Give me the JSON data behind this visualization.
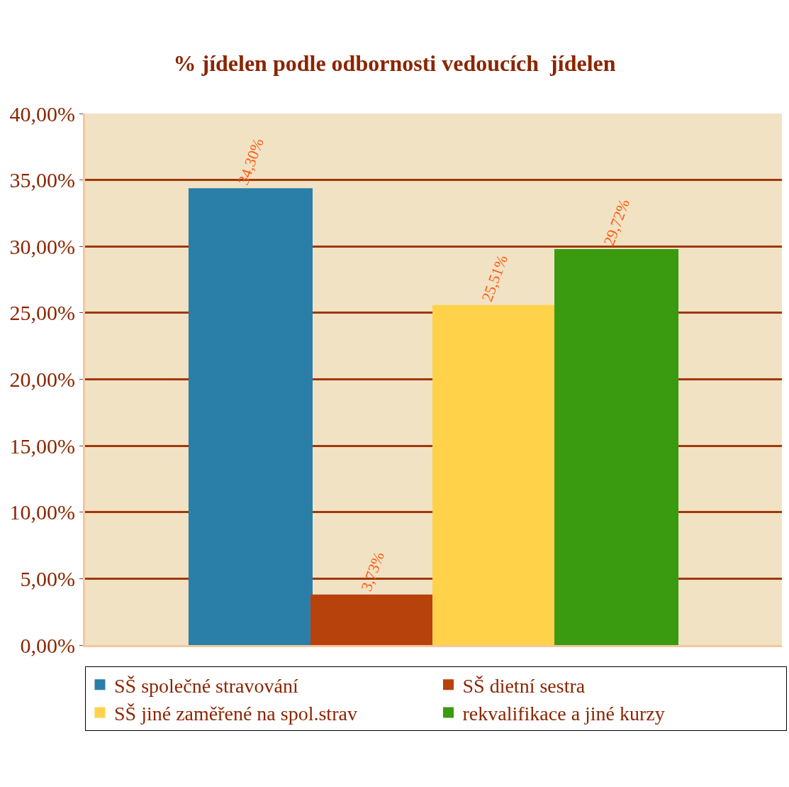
{
  "chart_data": {
    "type": "bar",
    "title": "% jídelen podle odbornosti vedoucích  jídelen",
    "categories": [
      null
    ],
    "series": [
      {
        "name": "SŠ společné stravování",
        "color": "#2a7fa8",
        "values": [
          34.3
        ],
        "value_labels": [
          "34,30%"
        ]
      },
      {
        "name": "SŠ dietní sestra",
        "color": "#b8420c",
        "values": [
          3.73
        ],
        "value_labels": [
          "3,73%"
        ]
      },
      {
        "name": "SŠ jiné zaměřené na spol.strav",
        "color": "#ffd24a",
        "values": [
          25.51
        ],
        "value_labels": [
          "25,51%"
        ]
      },
      {
        "name": "rekvalifikace a jiné kurzy",
        "color": "#3a9a10",
        "values": [
          29.72
        ],
        "value_labels": [
          "29,72%"
        ]
      }
    ],
    "ylim": [
      0,
      40
    ],
    "yticks": [
      {
        "value": 0,
        "label": "0,00%"
      },
      {
        "value": 5,
        "label": "5,00%"
      },
      {
        "value": 10,
        "label": "10,00%"
      },
      {
        "value": 15,
        "label": "15,00%"
      },
      {
        "value": 20,
        "label": "20,00%"
      },
      {
        "value": 25,
        "label": "25,00%"
      },
      {
        "value": 30,
        "label": "30,00%"
      },
      {
        "value": 35,
        "label": "35,00%"
      },
      {
        "value": 40,
        "label": "40,00%"
      }
    ],
    "grid": "y",
    "legend": "bottom"
  }
}
